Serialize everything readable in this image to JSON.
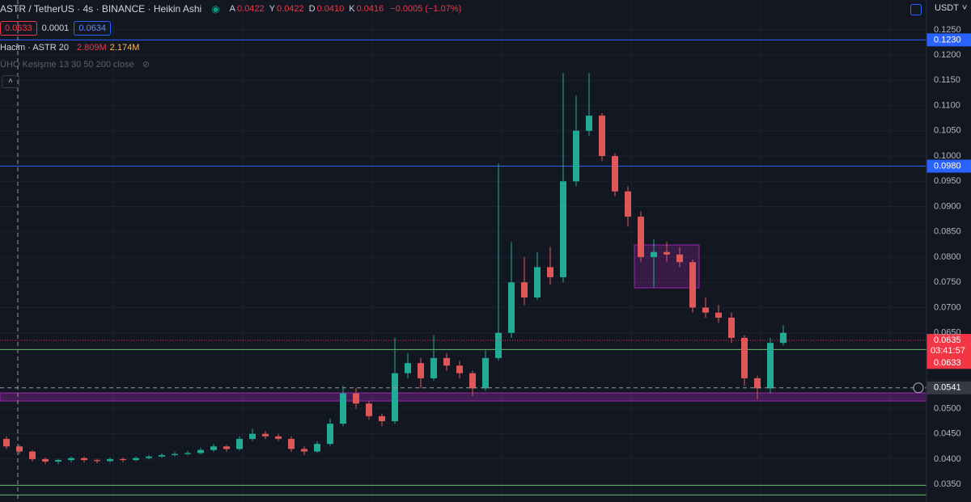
{
  "header": {
    "symbol": "ASTR / TetherUS · 4s · BINANCE · Heikin Ashi",
    "ohlc": [
      {
        "key": "A",
        "value": "0.0422"
      },
      {
        "key": "Y",
        "value": "0.0422"
      },
      {
        "key": "D",
        "value": "0.0410"
      },
      {
        "key": "K",
        "value": "0.0416"
      }
    ],
    "change": "−0.0005 (−1.07%)",
    "sell": "0.0633",
    "spread": "0.0001",
    "buy": "0.0634",
    "volume_title": "Hacim · ASTR 20",
    "volume_values": [
      "2.809M",
      "2.174M"
    ],
    "indicator": "ÜHO Kesişme 13 30 50 200 close",
    "currency": "USDT"
  },
  "chart_data": {
    "type": "candlestick",
    "up_color": "#22ab94",
    "down_color": "#e0575a",
    "open": [
      0.044,
      0.0425,
      0.0415,
      0.04,
      0.0395,
      0.0398,
      0.0402,
      0.0398,
      0.0396,
      0.04,
      0.0398,
      0.0402,
      0.0405,
      0.0408,
      0.041,
      0.0412,
      0.0418,
      0.0425,
      0.042,
      0.044,
      0.045,
      0.0445,
      0.044,
      0.042,
      0.0415,
      0.043,
      0.047,
      0.053,
      0.051,
      0.0485,
      0.0475,
      0.057,
      0.059,
      0.056,
      0.06,
      0.0585,
      0.057,
      0.054,
      0.06,
      0.065,
      0.075,
      0.072,
      0.078,
      0.076,
      0.095,
      0.105,
      0.108,
      0.1,
      0.093,
      0.088,
      0.08,
      0.081,
      0.0805,
      0.079,
      0.07,
      0.069,
      0.068,
      0.064,
      0.056,
      0.054,
      0.063
    ],
    "high": [
      0.0445,
      0.0428,
      0.0418,
      0.0403,
      0.0401,
      0.0405,
      0.0405,
      0.0401,
      0.0403,
      0.0403,
      0.0405,
      0.0408,
      0.0411,
      0.0414,
      0.0416,
      0.0422,
      0.043,
      0.0428,
      0.0445,
      0.046,
      0.0455,
      0.045,
      0.0445,
      0.0425,
      0.0435,
      0.048,
      0.0545,
      0.054,
      0.0515,
      0.049,
      0.064,
      0.061,
      0.06,
      0.0645,
      0.061,
      0.0595,
      0.0575,
      0.0615,
      0.0985,
      0.083,
      0.08,
      0.081,
      0.082,
      0.1165,
      0.112,
      0.1165,
      0.1085,
      0.1005,
      0.094,
      0.089,
      0.0835,
      0.083,
      0.082,
      0.0795,
      0.072,
      0.0705,
      0.069,
      0.0645,
      0.0565,
      0.064,
      0.0665
    ],
    "low": [
      0.042,
      0.041,
      0.0395,
      0.039,
      0.039,
      0.0394,
      0.0393,
      0.0392,
      0.0393,
      0.0394,
      0.0396,
      0.0399,
      0.0403,
      0.0405,
      0.0408,
      0.0409,
      0.0414,
      0.0415,
      0.0417,
      0.0436,
      0.044,
      0.0436,
      0.0414,
      0.0408,
      0.0412,
      0.0426,
      0.0465,
      0.05,
      0.0478,
      0.0465,
      0.047,
      0.056,
      0.054,
      0.0555,
      0.0575,
      0.056,
      0.0525,
      0.0535,
      0.0595,
      0.064,
      0.0705,
      0.0715,
      0.0745,
      0.075,
      0.094,
      0.104,
      0.099,
      0.092,
      0.086,
      0.079,
      0.074,
      0.079,
      0.078,
      0.069,
      0.068,
      0.067,
      0.063,
      0.0545,
      0.0518,
      0.053,
      0.0625
    ],
    "close": [
      0.0425,
      0.0415,
      0.04,
      0.0395,
      0.0398,
      0.0402,
      0.0398,
      0.0396,
      0.04,
      0.0398,
      0.0402,
      0.0405,
      0.0408,
      0.041,
      0.0412,
      0.0418,
      0.0425,
      0.042,
      0.044,
      0.045,
      0.0445,
      0.044,
      0.042,
      0.0415,
      0.043,
      0.047,
      0.053,
      0.051,
      0.0485,
      0.0475,
      0.057,
      0.059,
      0.056,
      0.06,
      0.0585,
      0.057,
      0.054,
      0.06,
      0.065,
      0.075,
      0.072,
      0.078,
      0.076,
      0.095,
      0.105,
      0.108,
      0.1,
      0.093,
      0.088,
      0.08,
      0.081,
      0.0805,
      0.079,
      0.07,
      0.069,
      0.068,
      0.064,
      0.056,
      0.054,
      0.063,
      0.065
    ],
    "ylim": [
      0.0315,
      0.1309
    ],
    "yticks": [
      {
        "value": 0.125,
        "label": "0.1250"
      },
      {
        "value": 0.12,
        "label": "0.1200"
      },
      {
        "value": 0.115,
        "label": "0.1150"
      },
      {
        "value": 0.11,
        "label": "0.1100"
      },
      {
        "value": 0.105,
        "label": "0.1050"
      },
      {
        "value": 0.1,
        "label": "0.1000"
      },
      {
        "value": 0.095,
        "label": "0.0950"
      },
      {
        "value": 0.09,
        "label": "0.0900"
      },
      {
        "value": 0.085,
        "label": "0.0850"
      },
      {
        "value": 0.08,
        "label": "0.0800"
      },
      {
        "value": 0.075,
        "label": "0.0750"
      },
      {
        "value": 0.07,
        "label": "0.0700"
      },
      {
        "value": 0.065,
        "label": "0.0650"
      },
      {
        "value": 0.05,
        "label": "0.0500"
      },
      {
        "value": 0.045,
        "label": "0.0450"
      },
      {
        "value": 0.04,
        "label": "0.0400"
      },
      {
        "value": 0.035,
        "label": "0.0350"
      }
    ],
    "grid": true,
    "price_lines": [
      {
        "value": 0.123,
        "label": "0.1230",
        "color": "#2962ff"
      },
      {
        "value": 0.098,
        "label": "0.0980",
        "color": "#2962ff"
      },
      {
        "value": 0.0617,
        "color": "#66bb6a"
      },
      {
        "value": 0.0348,
        "color": "#66bb6a"
      },
      {
        "value": 0.0329,
        "color": "#66bb6a"
      }
    ],
    "zone": {
      "top": 0.0531,
      "bottom": 0.0515,
      "color": "#9c27b0"
    },
    "box": {
      "top": 0.0824,
      "bottom": 0.0739,
      "color": "#9c27b0"
    },
    "last_price": {
      "value": 0.0635,
      "label": "0.0635",
      "countdown": "03:41:57",
      "color": "#f23645"
    },
    "bid_price": {
      "value": 0.0633,
      "label": "0.0633",
      "color": "#f23645"
    },
    "crosshair": {
      "value": 0.0541,
      "label": "0.0541"
    }
  }
}
